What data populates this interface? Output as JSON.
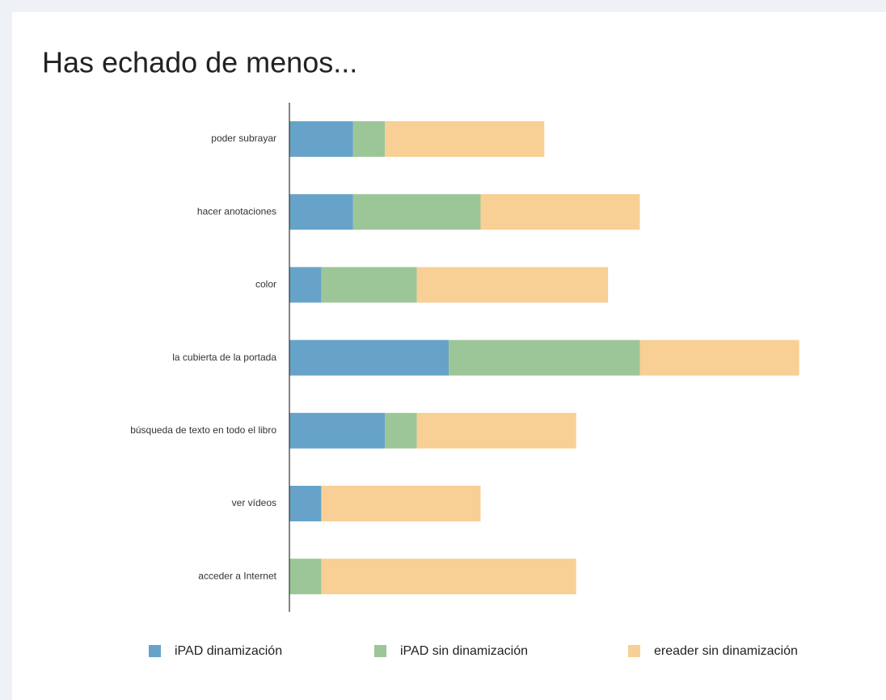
{
  "chart_data": {
    "type": "stacked_barh",
    "title": "Has echado de menos...",
    "categories": [
      "poder subrayar",
      "hacer anotaciones",
      "color",
      "la cubierta de la portada",
      "búsqueda de texto en todo el libro",
      "ver vídeos",
      "acceder a Internet"
    ],
    "series": [
      {
        "name": "iPAD dinamización",
        "color": "#67a3c8",
        "values": [
          2,
          2,
          1,
          5,
          3,
          1,
          0
        ]
      },
      {
        "name": "iPAD sin dinamización",
        "color": "#9cc697",
        "values": [
          1,
          4,
          3,
          6,
          1,
          0,
          1
        ]
      },
      {
        "name": "ereader sin dinamización",
        "color": "#f8cf94",
        "values": [
          5,
          5,
          6,
          5,
          5,
          5,
          8
        ]
      }
    ],
    "xlim": [
      0,
      16
    ],
    "legend": "bottom"
  }
}
